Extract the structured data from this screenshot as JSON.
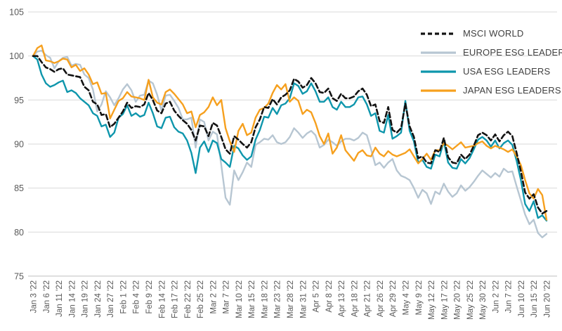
{
  "chart_data": {
    "type": "line",
    "title": "",
    "legend_position": "top-right",
    "background": "#ffffff",
    "grid_color": "#d9d9d9",
    "axis_line_color": "#c6c6c6",
    "axis_text_color": "#595959",
    "y_axis": {
      "min": 75,
      "max": 105,
      "ticks": [
        105,
        100,
        95,
        90,
        85,
        80,
        75
      ],
      "grid": true
    },
    "x_axis": {
      "label_every": 3,
      "labels": [
        "Jan 3 '22",
        "Jan 6 '22",
        "Jan 11 '22",
        "Jan 14 '22",
        "Jan 19 '22",
        "Jan 24 '22",
        "Jan 27 '22",
        "Feb 1 '22",
        "Feb 4 '22",
        "Feb 9 '22",
        "Feb 14 '22",
        "Feb 17 '22",
        "Feb 22 '22",
        "Feb 25 '22",
        "Mar 2 '22",
        "Mar 7 '22",
        "Mar 10 '22",
        "Mar 15 '22",
        "Mar 18 '22",
        "Mar 23 '22",
        "Mar 28 '22",
        "Mar 31 '22",
        "Apr 5 '22",
        "Apr 8 '22",
        "Apr 13 '22",
        "Apr 18 '22",
        "Apr 21 '22",
        "Apr 26 '22",
        "Apr 29 '22",
        "May 4 '22",
        "May 9 '22",
        "May 12 '22",
        "May 17 '22",
        "May 20 '22",
        "May 25 '22",
        "May 30 '22",
        "Jun 2 '22",
        "Jun 7 '22",
        "Jun 10 '22",
        "Jun 15 '22",
        "Jun 20 '22"
      ]
    },
    "x": [
      "Jan 3",
      "Jan 4",
      "Jan 5",
      "Jan 6",
      "Jan 7",
      "Jan 10",
      "Jan 11",
      "Jan 12",
      "Jan 13",
      "Jan 14",
      "Jan 17",
      "Jan 18",
      "Jan 19",
      "Jan 20",
      "Jan 21",
      "Jan 24",
      "Jan 25",
      "Jan 26",
      "Jan 27",
      "Jan 28",
      "Jan 31",
      "Feb 1",
      "Feb 2",
      "Feb 3",
      "Feb 4",
      "Feb 7",
      "Feb 8",
      "Feb 9",
      "Feb 10",
      "Feb 11",
      "Feb 14",
      "Feb 15",
      "Feb 16",
      "Feb 17",
      "Feb 18",
      "Feb 21",
      "Feb 22",
      "Feb 23",
      "Feb 24",
      "Feb 25",
      "Feb 28",
      "Mar 1",
      "Mar 2",
      "Mar 3",
      "Mar 4",
      "Mar 7",
      "Mar 8",
      "Mar 9",
      "Mar 10",
      "Mar 11",
      "Mar 14",
      "Mar 15",
      "Mar 16",
      "Mar 17",
      "Mar 18",
      "Mar 21",
      "Mar 22",
      "Mar 23",
      "Mar 24",
      "Mar 25",
      "Mar 28",
      "Mar 29",
      "Mar 30",
      "Mar 31",
      "Apr 1",
      "Apr 4",
      "Apr 5",
      "Apr 6",
      "Apr 7",
      "Apr 8",
      "Apr 11",
      "Apr 12",
      "Apr 13",
      "Apr 14",
      "Apr 15",
      "Apr 18",
      "Apr 19",
      "Apr 20",
      "Apr 21",
      "Apr 22",
      "Apr 25",
      "Apr 26",
      "Apr 27",
      "Apr 28",
      "Apr 29",
      "May 2",
      "May 3",
      "May 4",
      "May 5",
      "May 6",
      "May 9",
      "May 10",
      "May 11",
      "May 12",
      "May 13",
      "May 16",
      "May 17",
      "May 18",
      "May 19",
      "May 20",
      "May 23",
      "May 24",
      "May 25",
      "May 26",
      "May 27",
      "May 30",
      "May 31",
      "Jun 1",
      "Jun 2",
      "Jun 3",
      "Jun 6",
      "Jun 7",
      "Jun 8",
      "Jun 9",
      "Jun 10",
      "Jun 13",
      "Jun 14",
      "Jun 15",
      "Jun 16",
      "Jun 17",
      "Jun 20"
    ],
    "series": [
      {
        "name": "MSCI WORLD",
        "color": "#131313",
        "dash": "7 4",
        "width": 2.6,
        "values": [
          100.0,
          100.0,
          99.3,
          98.7,
          98.5,
          98.2,
          98.5,
          98.6,
          97.9,
          97.8,
          97.7,
          97.6,
          96.5,
          96.1,
          94.8,
          94.5,
          93.3,
          93.4,
          91.9,
          92.3,
          93.0,
          93.7,
          94.7,
          94.1,
          94.3,
          94.2,
          94.5,
          95.8,
          95.0,
          93.8,
          93.5,
          94.6,
          94.8,
          93.8,
          93.2,
          92.7,
          92.3,
          91.6,
          90.4,
          92.1,
          92.0,
          90.9,
          92.4,
          92.1,
          90.8,
          89.4,
          88.9,
          90.9,
          90.5,
          90.0,
          89.6,
          90.2,
          91.9,
          92.8,
          94.2,
          94.1,
          95.1,
          94.5,
          95.3,
          95.6,
          96.1,
          97.4,
          97.1,
          96.4,
          96.7,
          97.5,
          96.9,
          95.9,
          95.8,
          96.3,
          95.2,
          94.9,
          95.7,
          95.2,
          95.2,
          95.4,
          96.0,
          96.3,
          95.6,
          94.3,
          94.5,
          92.6,
          92.4,
          94.2,
          91.6,
          91.3,
          91.8,
          94.6,
          92.0,
          90.8,
          88.4,
          88.6,
          87.9,
          87.8,
          89.3,
          89.1,
          90.7,
          88.5,
          87.9,
          87.8,
          88.8,
          88.3,
          88.8,
          89.8,
          91.0,
          91.3,
          91.0,
          90.4,
          91.1,
          90.3,
          91.0,
          91.4,
          90.9,
          89.0,
          86.9,
          84.5,
          83.8,
          84.3,
          82.8,
          82.1,
          82.4
        ]
      },
      {
        "name": "EUROPE ESG LEADERS",
        "color": "#b7c6d2",
        "dash": "",
        "width": 2.4,
        "values": [
          100.0,
          100.5,
          100.6,
          100.1,
          99.8,
          98.6,
          99.4,
          99.8,
          99.9,
          98.9,
          99.1,
          99.0,
          97.9,
          97.5,
          96.2,
          93.7,
          94.5,
          96.0,
          95.3,
          94.4,
          95.2,
          96.2,
          96.8,
          96.1,
          94.8,
          95.5,
          95.6,
          97.2,
          96.9,
          95.6,
          93.8,
          95.5,
          95.6,
          94.9,
          94.1,
          92.8,
          92.8,
          93.0,
          89.6,
          92.8,
          92.5,
          90.4,
          91.4,
          91.1,
          87.6,
          83.9,
          83.1,
          87.0,
          85.9,
          86.8,
          87.9,
          87.4,
          89.9,
          90.2,
          90.6,
          90.5,
          91.0,
          90.2,
          90.0,
          90.2,
          90.8,
          91.8,
          91.3,
          90.7,
          91.2,
          91.5,
          91.0,
          89.6,
          89.9,
          90.5,
          90.2,
          89.8,
          90.3,
          90.6,
          90.6,
          90.4,
          90.7,
          91.3,
          91.0,
          89.4,
          87.6,
          87.9,
          87.3,
          87.9,
          88.3,
          87.0,
          86.4,
          86.2,
          85.9,
          85.0,
          83.9,
          84.8,
          84.4,
          83.2,
          84.6,
          84.3,
          85.5,
          84.6,
          84.0,
          84.4,
          85.3,
          84.7,
          85.1,
          85.7,
          86.4,
          87.0,
          86.6,
          86.2,
          86.7,
          86.3,
          87.2,
          86.8,
          86.9,
          85.2,
          83.6,
          82.0,
          80.9,
          81.4,
          79.9,
          79.4,
          79.8
        ]
      },
      {
        "name": "USA ESG LEADERS",
        "color": "#0e96ac",
        "dash": "",
        "width": 2.4,
        "values": [
          100.0,
          99.6,
          97.9,
          96.9,
          96.5,
          96.7,
          97.0,
          97.2,
          95.9,
          96.1,
          95.8,
          95.2,
          94.8,
          94.4,
          93.5,
          93.2,
          92.0,
          92.2,
          90.8,
          91.3,
          93.0,
          93.4,
          94.4,
          93.2,
          93.5,
          93.1,
          93.3,
          94.7,
          93.5,
          92.0,
          91.8,
          93.0,
          93.1,
          91.9,
          91.4,
          91.2,
          90.4,
          89.0,
          86.7,
          89.6,
          90.3,
          89.1,
          90.4,
          90.1,
          88.3,
          87.9,
          87.4,
          89.8,
          89.5,
          88.7,
          88.2,
          88.6,
          90.5,
          91.6,
          93.1,
          93.0,
          94.1,
          93.4,
          94.4,
          94.6,
          95.2,
          96.9,
          96.6,
          95.7,
          96.0,
          96.9,
          96.0,
          94.8,
          94.8,
          95.3,
          94.2,
          93.9,
          94.8,
          94.2,
          94.2,
          94.5,
          95.3,
          95.4,
          94.5,
          93.2,
          93.5,
          91.5,
          91.3,
          93.3,
          90.6,
          90.9,
          91.3,
          94.9,
          91.5,
          90.3,
          87.9,
          88.2,
          87.4,
          87.2,
          88.8,
          88.6,
          90.3,
          87.9,
          87.3,
          87.2,
          88.3,
          87.8,
          88.4,
          89.4,
          90.5,
          90.8,
          90.4,
          89.7,
          90.4,
          89.5,
          90.1,
          90.4,
          89.9,
          88.1,
          85.9,
          83.2,
          82.4,
          83.5,
          81.6,
          81.9,
          81.3
        ]
      },
      {
        "name": "JAPAN ESG LEADERS",
        "color": "#f6a01e",
        "dash": "",
        "width": 2.4,
        "values": [
          100.0,
          100.9,
          101.2,
          99.5,
          99.4,
          99.2,
          99.4,
          99.7,
          99.6,
          98.7,
          99.0,
          98.3,
          98.6,
          97.9,
          96.8,
          97.0,
          95.7,
          95.8,
          92.9,
          93.9,
          94.9,
          95.2,
          95.9,
          95.4,
          95.3,
          95.2,
          95.0,
          97.3,
          95.3,
          94.7,
          94.5,
          95.9,
          96.2,
          95.7,
          95.1,
          94.5,
          93.5,
          93.7,
          91.9,
          93.3,
          93.6,
          94.2,
          95.3,
          94.4,
          95.0,
          91.8,
          90.3,
          89.1,
          91.5,
          92.3,
          91.0,
          91.3,
          93.0,
          93.9,
          94.1,
          94.6,
          95.8,
          96.7,
          96.2,
          96.8,
          94.8,
          95.3,
          94.9,
          93.4,
          93.9,
          93.6,
          92.4,
          90.9,
          90.0,
          91.2,
          88.9,
          89.6,
          91.0,
          89.3,
          88.7,
          88.1,
          89.0,
          89.3,
          88.7,
          88.6,
          89.6,
          88.9,
          88.6,
          89.2,
          88.8,
          88.6,
          88.8,
          89.0,
          89.4,
          88.6,
          87.8,
          88.3,
          88.9,
          88.2,
          89.3,
          89.3,
          90.1,
          89.8,
          89.4,
          89.8,
          90.2,
          89.6,
          89.7,
          89.8,
          90.1,
          90.3,
          89.8,
          89.5,
          89.8,
          89.6,
          89.4,
          89.1,
          89.4,
          88.6,
          87.6,
          85.9,
          84.4,
          83.8,
          84.9,
          84.2,
          81.4
        ]
      }
    ]
  }
}
